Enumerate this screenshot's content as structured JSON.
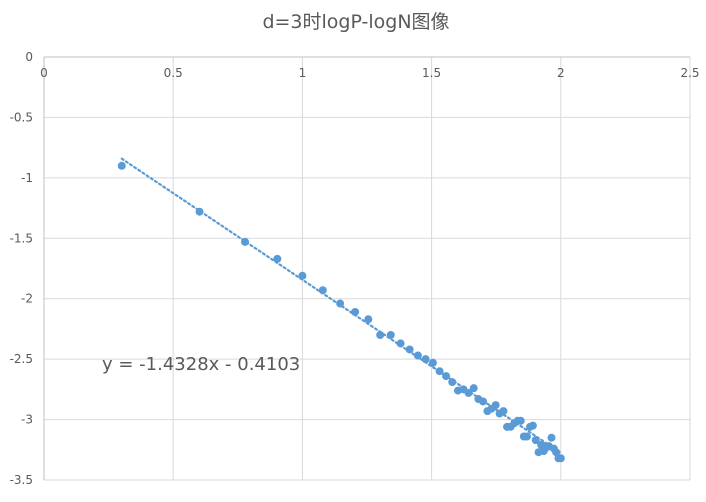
{
  "chart_data": {
    "type": "scatter",
    "title": "d=3时logP-logN图像",
    "xlabel": "",
    "ylabel": "",
    "xlim": [
      0,
      2.5
    ],
    "ylim": [
      -3.5,
      0
    ],
    "x_ticks": [
      "0",
      "0.5",
      "1",
      "1.5",
      "2",
      "2.5"
    ],
    "y_ticks": [
      "0",
      "-0.5",
      "-1",
      "-1.5",
      "-2",
      "-2.5",
      "-3",
      "-3.5"
    ],
    "x_tick_values": [
      0,
      0.5,
      1,
      1.5,
      2,
      2.5
    ],
    "y_tick_values": [
      0,
      -0.5,
      -1,
      -1.5,
      -2,
      -2.5,
      -3,
      -3.5
    ],
    "grid": true,
    "legend": "none",
    "point_color": "#5b9bd5",
    "trendline": {
      "type": "linear",
      "slope": -1.4328,
      "intercept": -0.4103,
      "style": "dotted",
      "color": "#5b9bd5",
      "x_range": [
        0.301,
        2.0
      ]
    },
    "equation_label": "y = -1.4328x - 0.4103",
    "series": [
      {
        "x": [
          0.301,
          0.602,
          0.778,
          0.903,
          1.0,
          1.079,
          1.146,
          1.204,
          1.255,
          1.301,
          1.342,
          1.38,
          1.415,
          1.447,
          1.477,
          1.505,
          1.531,
          1.556,
          1.58,
          1.602,
          1.623,
          1.643,
          1.663,
          1.681,
          1.699,
          1.716,
          1.732,
          1.748,
          1.763,
          1.778,
          1.792,
          1.806,
          1.82,
          1.833,
          1.845,
          1.857,
          1.869,
          1.881,
          1.892,
          1.903,
          1.914,
          1.924,
          1.934,
          1.944,
          1.954,
          1.964,
          1.973,
          1.982,
          1.991,
          2.0
        ],
        "y": [
          -0.9,
          -1.28,
          -1.53,
          -1.67,
          -1.81,
          -1.93,
          -2.04,
          -2.11,
          -2.17,
          -2.3,
          -2.3,
          -2.37,
          -2.42,
          -2.47,
          -2.5,
          -2.53,
          -2.6,
          -2.64,
          -2.69,
          -2.76,
          -2.75,
          -2.78,
          -2.74,
          -2.83,
          -2.85,
          -2.93,
          -2.91,
          -2.88,
          -2.95,
          -2.93,
          -3.06,
          -3.06,
          -3.03,
          -3.01,
          -3.01,
          -3.14,
          -3.14,
          -3.06,
          -3.05,
          -3.17,
          -3.27,
          -3.21,
          -3.26,
          -3.23,
          -3.22,
          -3.15,
          -3.24,
          -3.27,
          -3.32,
          -3.32
        ]
      }
    ]
  }
}
